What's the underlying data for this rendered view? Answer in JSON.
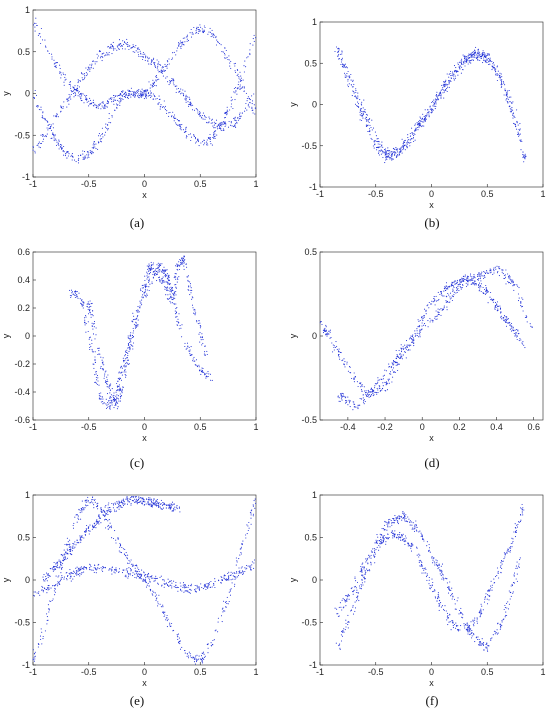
{
  "figure": {
    "captions": [
      "(a)",
      "(b)",
      "(c)",
      "(d)",
      "(e)",
      "(f)"
    ]
  },
  "colors": {
    "points": "#1f2fd6",
    "axes": "#222222"
  },
  "chart_data": [
    {
      "id": "a",
      "type": "scatter",
      "caption": "(a)",
      "xlabel": "x",
      "ylabel": "y",
      "xlim": [
        -1,
        1
      ],
      "ylim": [
        -1,
        1
      ],
      "xticks": [
        -1,
        -0.5,
        0,
        0.5,
        1
      ],
      "yticks": [
        -1,
        -0.5,
        0,
        0.5,
        1
      ],
      "xtick_labels": [
        "-1",
        "-0.5",
        "0",
        "0.5",
        "1"
      ],
      "ytick_labels": [
        "-1",
        "-0.5",
        "0",
        "0.5",
        "1"
      ],
      "grid": false,
      "point_color": "#1f2fd6",
      "series": [
        {
          "x": [
            -1.0,
            -0.9,
            -0.8,
            -0.7,
            -0.6,
            -0.5,
            -0.4,
            -0.3,
            -0.2,
            -0.1,
            0.0,
            0.1,
            0.2,
            0.3,
            0.4,
            0.5,
            0.6,
            0.7,
            0.8,
            0.9,
            1.0
          ],
          "y": [
            0.0,
            -0.3,
            -0.55,
            -0.72,
            -0.78,
            -0.72,
            -0.55,
            -0.3,
            -0.05,
            0.0,
            0.0,
            0.15,
            0.35,
            0.55,
            0.7,
            0.78,
            0.72,
            0.55,
            0.3,
            0.0,
            -0.2
          ]
        },
        {
          "x": [
            -1.0,
            -0.9,
            -0.8,
            -0.7,
            -0.6,
            -0.5,
            -0.4,
            -0.3,
            -0.2,
            -0.1,
            0.0,
            0.1,
            0.2,
            0.3,
            0.4,
            0.5,
            0.6,
            0.7,
            0.8,
            0.9,
            1.0
          ],
          "y": [
            0.9,
            0.6,
            0.35,
            0.15,
            0.0,
            -0.1,
            -0.15,
            -0.1,
            0.0,
            0.0,
            0.0,
            -0.05,
            -0.2,
            -0.35,
            -0.5,
            -0.6,
            -0.55,
            -0.35,
            -0.05,
            0.35,
            0.75
          ]
        },
        {
          "x": [
            -1.0,
            -0.9,
            -0.8,
            -0.7,
            -0.6,
            -0.5,
            -0.4,
            -0.3,
            -0.2,
            -0.1,
            0.0,
            0.1,
            0.2,
            0.3,
            0.4,
            0.5,
            0.6,
            0.7,
            0.8,
            0.9,
            1.0
          ],
          "y": [
            -0.7,
            -0.5,
            -0.3,
            -0.1,
            0.1,
            0.3,
            0.45,
            0.55,
            0.6,
            0.55,
            0.45,
            0.35,
            0.2,
            0.05,
            -0.1,
            -0.25,
            -0.35,
            -0.4,
            -0.35,
            -0.2,
            0.0
          ]
        }
      ]
    },
    {
      "id": "b",
      "type": "scatter",
      "caption": "(b)",
      "xlabel": "x",
      "ylabel": "y",
      "xlim": [
        -1,
        1
      ],
      "ylim": [
        -1,
        1
      ],
      "xticks": [
        -1,
        -0.5,
        0,
        0.5,
        1
      ],
      "yticks": [
        -1,
        -0.5,
        0,
        0.5,
        1
      ],
      "xtick_labels": [
        "-1",
        "-0.5",
        "0",
        "0.5",
        "1"
      ],
      "ytick_labels": [
        "-1",
        "-0.5",
        "0",
        "0.5",
        "1"
      ],
      "grid": false,
      "point_color": "#1f2fd6",
      "series": [
        {
          "x": [
            -0.85,
            -0.8,
            -0.7,
            -0.6,
            -0.5,
            -0.4,
            -0.3,
            -0.2,
            -0.1,
            0.0,
            0.1,
            0.2,
            0.3,
            0.4,
            0.5,
            0.6,
            0.7,
            0.8,
            0.85
          ],
          "y": [
            0.7,
            0.55,
            0.2,
            -0.1,
            -0.4,
            -0.6,
            -0.55,
            -0.4,
            -0.2,
            0.0,
            0.2,
            0.4,
            0.55,
            0.6,
            0.55,
            0.35,
            0.0,
            -0.45,
            -0.7
          ]
        },
        {
          "x": [
            -0.8,
            -0.7,
            -0.6,
            -0.5,
            -0.4,
            -0.3,
            -0.2,
            -0.1,
            0.0,
            0.1,
            0.2,
            0.3,
            0.4,
            0.5,
            0.6,
            0.7,
            0.8
          ],
          "y": [
            0.5,
            0.15,
            -0.2,
            -0.5,
            -0.65,
            -0.6,
            -0.45,
            -0.25,
            -0.05,
            0.15,
            0.35,
            0.5,
            0.65,
            0.6,
            0.4,
            0.05,
            -0.35
          ]
        }
      ]
    },
    {
      "id": "c",
      "type": "scatter",
      "caption": "(c)",
      "xlabel": "x",
      "ylabel": "y",
      "xlim": [
        -1,
        1
      ],
      "ylim": [
        -0.6,
        0.6
      ],
      "xticks": [
        -1,
        -0.5,
        0,
        0.5,
        1
      ],
      "yticks": [
        -0.6,
        -0.4,
        -0.2,
        0,
        0.2,
        0.4,
        0.6
      ],
      "xtick_labels": [
        "-1",
        "-0.5",
        "0",
        "0.5",
        "1"
      ],
      "ytick_labels": [
        "-0.6",
        "-0.4",
        "-0.2",
        "0",
        "0.2",
        "0.4",
        "0.6"
      ],
      "grid": false,
      "point_color": "#1f2fd6",
      "series": [
        {
          "x": [
            -0.65,
            -0.6,
            -0.55,
            -0.5,
            -0.45,
            -0.4,
            -0.3,
            -0.25,
            -0.2,
            -0.15,
            -0.1,
            0.0,
            0.1,
            0.15,
            0.2,
            0.25,
            0.3,
            0.4,
            0.5,
            0.6
          ],
          "y": [
            0.3,
            0.3,
            0.2,
            0.0,
            -0.2,
            -0.45,
            -0.5,
            -0.4,
            -0.25,
            -0.1,
            0.1,
            0.3,
            0.45,
            0.5,
            0.45,
            0.3,
            0.1,
            -0.1,
            -0.25,
            -0.3
          ]
        },
        {
          "x": [
            -0.5,
            -0.45,
            -0.35,
            -0.25,
            -0.2,
            -0.1,
            0.0,
            0.05,
            0.15,
            0.25,
            0.3,
            0.35,
            0.45,
            0.55
          ],
          "y": [
            0.25,
            0.05,
            -0.3,
            -0.5,
            -0.35,
            0.0,
            0.35,
            0.5,
            0.4,
            0.25,
            0.5,
            0.55,
            0.2,
            -0.15
          ]
        }
      ]
    },
    {
      "id": "d",
      "type": "scatter",
      "caption": "(d)",
      "xlabel": "x",
      "ylabel": "y",
      "xlim": [
        -0.55,
        0.65
      ],
      "ylim": [
        -0.5,
        0.5
      ],
      "xticks": [
        -0.4,
        -0.2,
        0,
        0.2,
        0.4,
        0.6
      ],
      "yticks": [
        -0.5,
        0,
        0.5
      ],
      "xtick_labels": [
        "-0.4",
        "-0.2",
        "0",
        "0.2",
        "0.4",
        "0.6"
      ],
      "ytick_labels": [
        "-0.5",
        "0",
        "0.5"
      ],
      "grid": false,
      "point_color": "#1f2fd6",
      "series": [
        {
          "x": [
            -0.55,
            -0.5,
            -0.4,
            -0.3,
            -0.2,
            -0.1,
            0.0,
            0.1,
            0.2,
            0.3,
            0.4,
            0.5,
            0.6
          ],
          "y": [
            0.08,
            0.0,
            -0.2,
            -0.35,
            -0.3,
            -0.1,
            0.05,
            0.15,
            0.3,
            0.35,
            0.4,
            0.3,
            0.0
          ]
        },
        {
          "x": [
            -0.45,
            -0.35,
            -0.25,
            -0.15,
            -0.05,
            0.05,
            0.15,
            0.25,
            0.35,
            0.45,
            0.55
          ],
          "y": [
            -0.35,
            -0.42,
            -0.3,
            -0.15,
            0.0,
            0.2,
            0.3,
            0.35,
            0.25,
            0.1,
            -0.05
          ]
        }
      ]
    },
    {
      "id": "e",
      "type": "scatter",
      "caption": "(e)",
      "xlabel": "x",
      "ylabel": "y",
      "xlim": [
        -1,
        1
      ],
      "ylim": [
        -1,
        1
      ],
      "xticks": [
        -1,
        -0.5,
        0,
        0.5,
        1
      ],
      "yticks": [
        -1,
        -0.5,
        0,
        0.5,
        1
      ],
      "xtick_labels": [
        "-1",
        "-0.5",
        "0",
        "0.5",
        "1"
      ],
      "ytick_labels": [
        "-1",
        "-0.5",
        "0",
        "0.5",
        "1"
      ],
      "grid": false,
      "point_color": "#1f2fd6",
      "series": [
        {
          "x": [
            -1.0,
            -0.9,
            -0.8,
            -0.7,
            -0.6,
            -0.5,
            -0.4,
            -0.3,
            -0.2,
            -0.1,
            0.0,
            0.1,
            0.2,
            0.3,
            0.4,
            0.5,
            0.6,
            0.7,
            0.8,
            0.9,
            1.0
          ],
          "y": [
            -0.95,
            -0.55,
            -0.1,
            0.35,
            0.75,
            0.95,
            0.85,
            0.6,
            0.35,
            0.15,
            0.0,
            -0.2,
            -0.45,
            -0.7,
            -0.9,
            -0.95,
            -0.75,
            -0.4,
            0.0,
            0.5,
            0.95
          ]
        },
        {
          "x": [
            -1.0,
            -0.8,
            -0.6,
            -0.4,
            -0.2,
            0.0,
            0.2,
            0.4,
            0.6,
            0.8,
            1.0
          ],
          "y": [
            -0.2,
            -0.05,
            0.1,
            0.15,
            0.1,
            0.05,
            -0.05,
            -0.1,
            -0.05,
            0.05,
            0.2
          ]
        },
        {
          "x": [
            -0.9,
            -0.7,
            -0.5,
            -0.3,
            -0.1,
            0.1,
            0.3
          ],
          "y": [
            0.0,
            0.3,
            0.6,
            0.85,
            0.95,
            0.9,
            0.85
          ]
        }
      ]
    },
    {
      "id": "f",
      "type": "scatter",
      "caption": "(f)",
      "xlabel": "x",
      "ylabel": "y",
      "xlim": [
        -1,
        1
      ],
      "ylim": [
        -1,
        1
      ],
      "xticks": [
        -1,
        -0.5,
        0,
        0.5,
        1
      ],
      "yticks": [
        -1,
        -0.5,
        0,
        0.5,
        1
      ],
      "xtick_labels": [
        "-1",
        "-0.5",
        "0",
        "0.5",
        "1"
      ],
      "ytick_labels": [
        "-1",
        "-0.5",
        "0",
        "0.5",
        "1"
      ],
      "grid": false,
      "point_color": "#1f2fd6",
      "series": [
        {
          "x": [
            -0.85,
            -0.75,
            -0.65,
            -0.55,
            -0.45,
            -0.35,
            -0.25,
            -0.15,
            -0.05,
            0.05,
            0.15,
            0.25,
            0.35,
            0.45,
            0.55,
            0.65,
            0.75,
            0.82
          ],
          "y": [
            -0.8,
            -0.5,
            -0.15,
            0.2,
            0.45,
            0.55,
            0.5,
            0.35,
            0.1,
            -0.2,
            -0.45,
            -0.6,
            -0.55,
            -0.35,
            -0.05,
            0.25,
            0.55,
            0.85
          ]
        },
        {
          "x": [
            -0.85,
            -0.7,
            -0.55,
            -0.4,
            -0.25,
            -0.1,
            0.05,
            0.2,
            0.35,
            0.5,
            0.65,
            0.8
          ],
          "y": [
            -0.4,
            -0.1,
            0.3,
            0.65,
            0.75,
            0.55,
            0.2,
            -0.2,
            -0.65,
            -0.8,
            -0.45,
            0.25
          ]
        }
      ]
    }
  ]
}
